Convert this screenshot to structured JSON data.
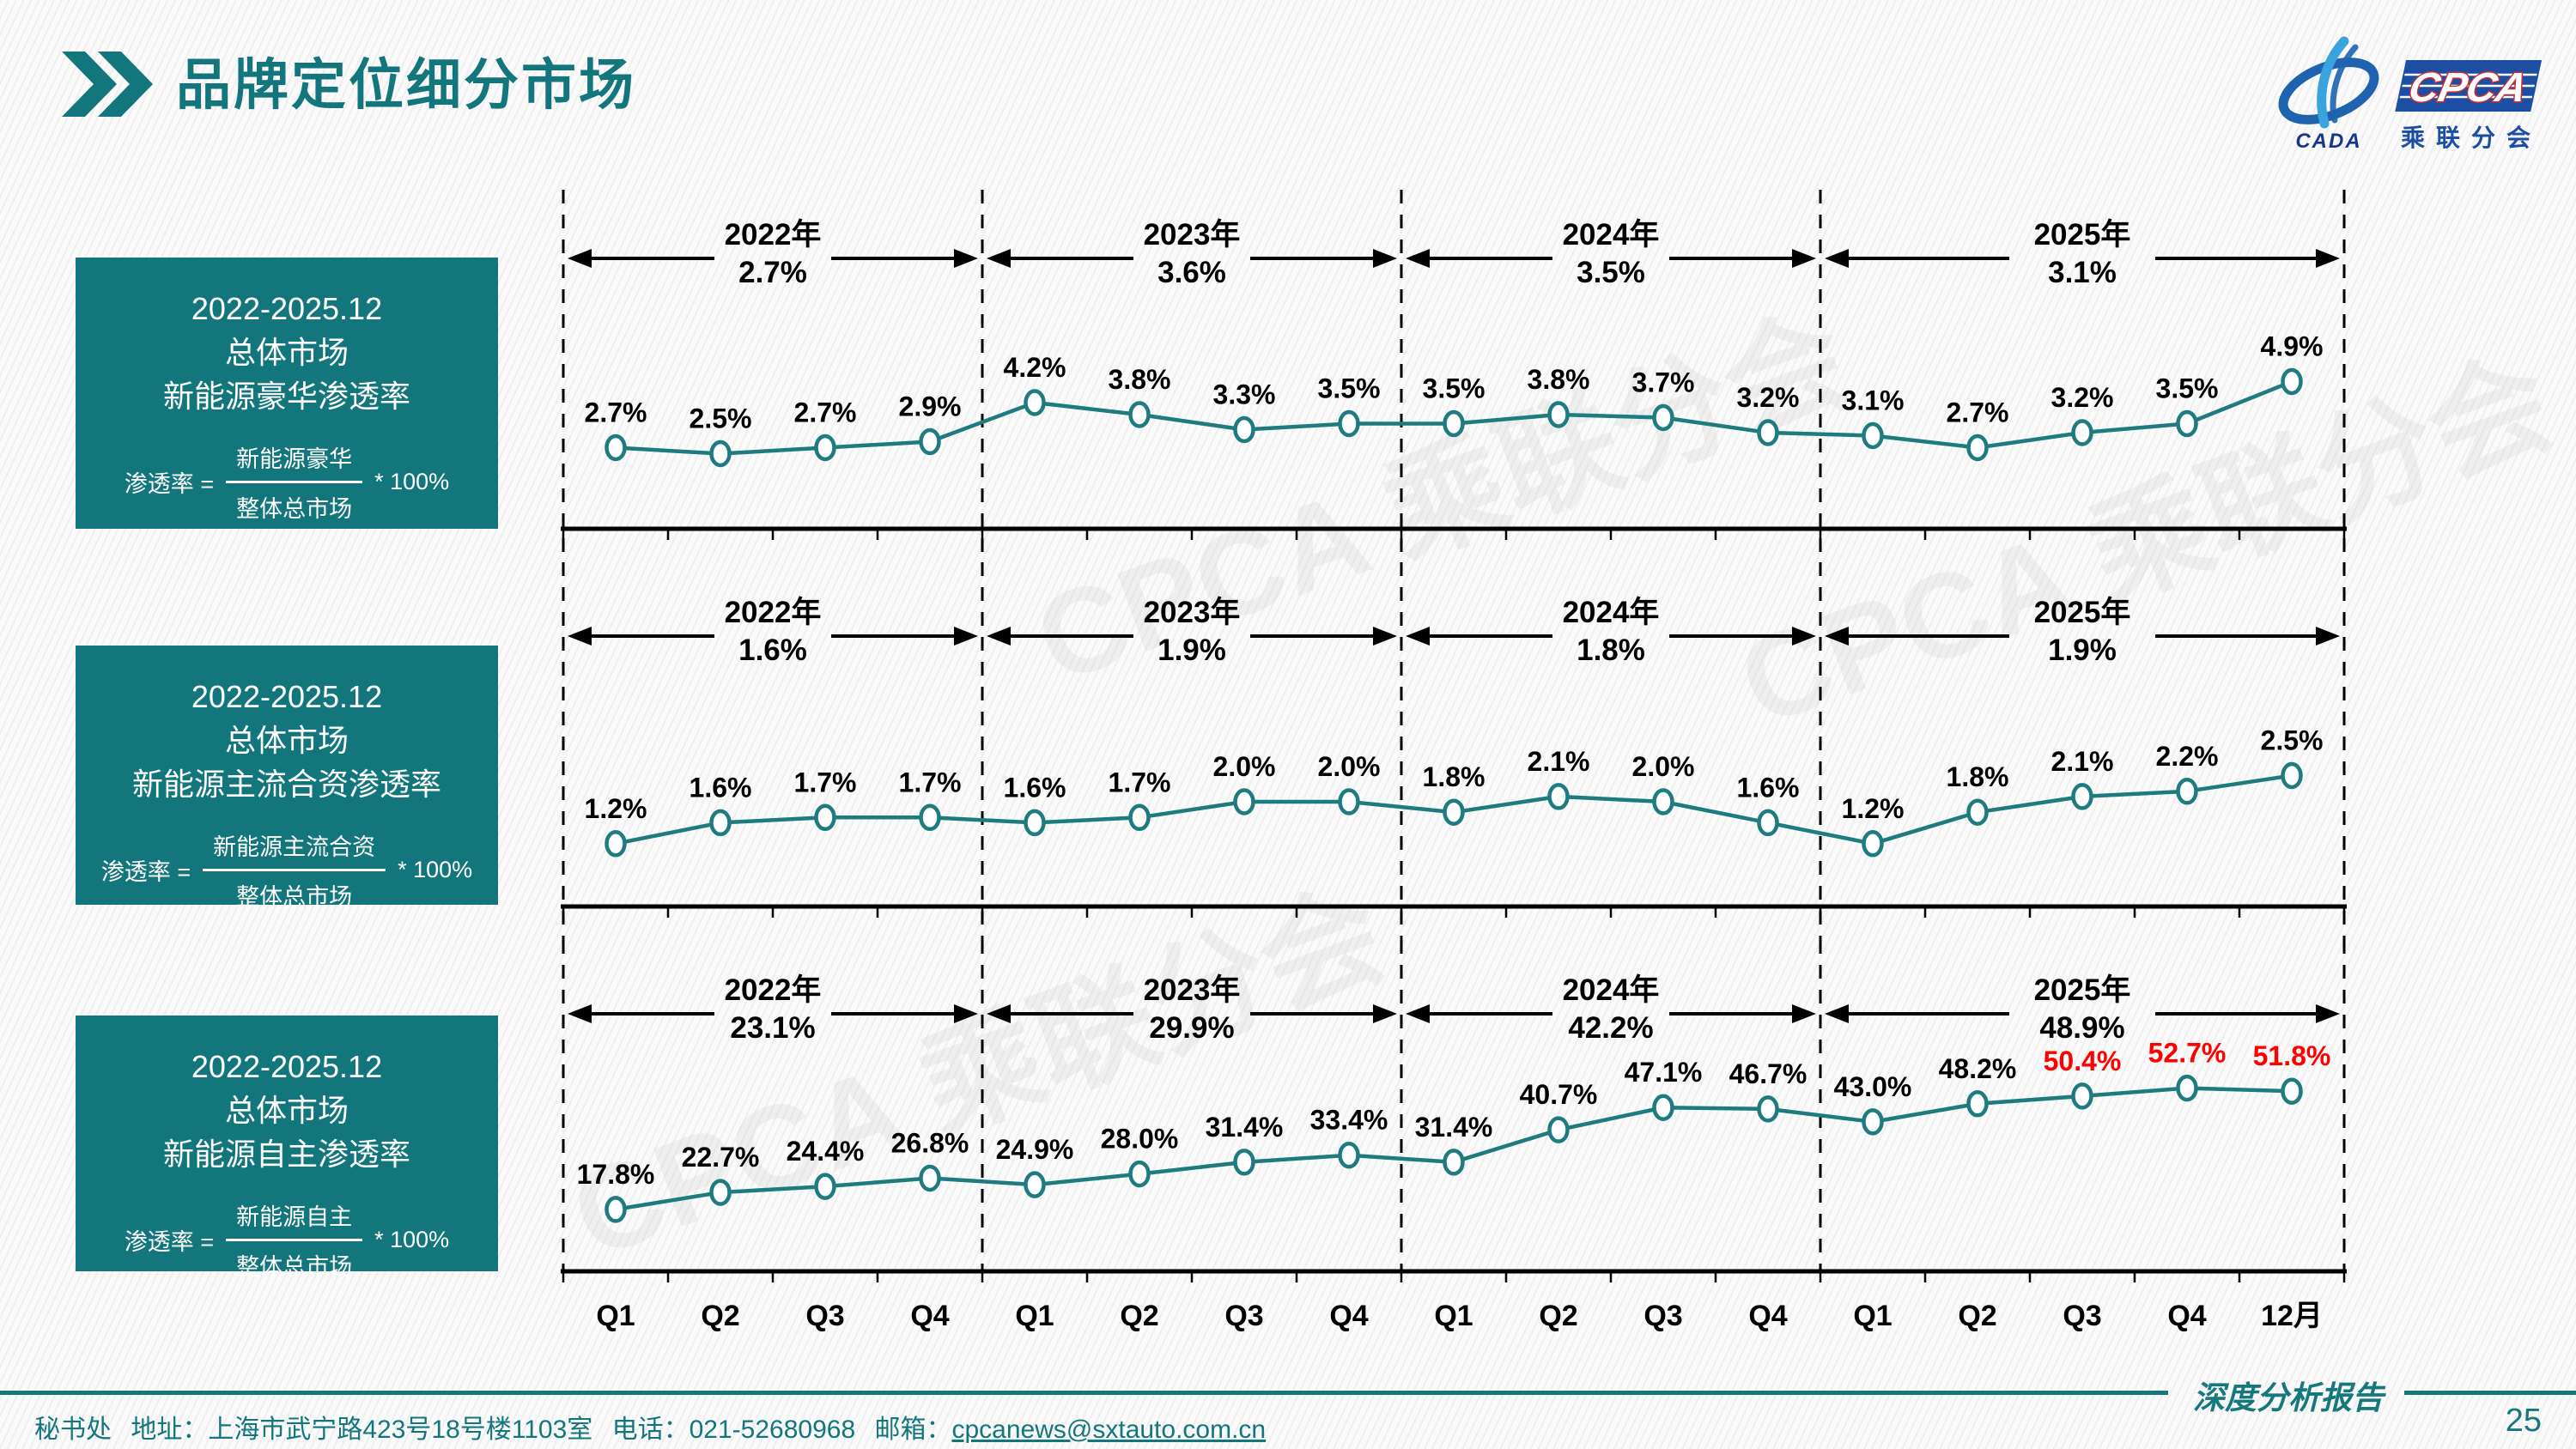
{
  "page": {
    "title": "品牌定位细分市场",
    "report_type": "深度分析报告",
    "page_number": "25"
  },
  "logo": {
    "cpca": "CPCA",
    "subtitle": "乘联分会",
    "cada": "CADA"
  },
  "watermark": "CPCA 乘联分会",
  "footer": {
    "dept": "秘书处",
    "address": "地址：上海市武宁路423号18号楼1103室",
    "phone": "电话：021-52680968",
    "email_label": "邮箱：",
    "email": "cpcanews@sxtauto.com.cn"
  },
  "colors": {
    "teal": "#12767C",
    "line": "#1E7B80",
    "red": "#FF0000",
    "black": "#000000",
    "logo_blue": "#1C4FA3"
  },
  "chart_data": [
    {
      "type": "line",
      "title": "2022-2025.12 总体市场 新能源豪华渗透率",
      "info": {
        "period": "2022-2025.12",
        "market": "总体市场",
        "metric": "新能源豪华渗透率",
        "lhs": "渗透率 =",
        "numerator": "新能源豪华",
        "denominator": "整体总市场",
        "times": "* 100%"
      },
      "years": [
        {
          "label": "2022年",
          "avg": "2.7%"
        },
        {
          "label": "2023年",
          "avg": "3.6%"
        },
        {
          "label": "2024年",
          "avg": "3.5%"
        },
        {
          "label": "2025年",
          "avg": "3.1%"
        }
      ],
      "x_labels": [
        "Q1",
        "Q2",
        "Q3",
        "Q4",
        "Q1",
        "Q2",
        "Q3",
        "Q4",
        "Q1",
        "Q2",
        "Q3",
        "Q4",
        "Q1",
        "Q2",
        "Q3",
        "Q4",
        "12月"
      ],
      "values": [
        2.7,
        2.5,
        2.7,
        2.9,
        4.2,
        3.8,
        3.3,
        3.5,
        3.5,
        3.8,
        3.7,
        3.2,
        3.1,
        2.7,
        3.2,
        3.5,
        4.9
      ],
      "labels": [
        "2.7%",
        "2.5%",
        "2.7%",
        "2.9%",
        "4.2%",
        "3.8%",
        "3.3%",
        "3.5%",
        "3.5%",
        "3.8%",
        "3.7%",
        "3.2%",
        "3.1%",
        "2.7%",
        "3.2%",
        "3.5%",
        "4.9%"
      ],
      "red_label_indices": [],
      "ylim": [
        0,
        11.5
      ],
      "grid": false,
      "legend": "none"
    },
    {
      "type": "line",
      "title": "2022-2025.12 总体市场 新能源主流合资渗透率",
      "info": {
        "period": "2022-2025.12",
        "market": "总体市场",
        "metric": "新能源主流合资渗透率",
        "lhs": "渗透率 =",
        "numerator": "新能源主流合资",
        "denominator": "整体总市场",
        "times": "* 100%"
      },
      "years": [
        {
          "label": "2022年",
          "avg": "1.6%"
        },
        {
          "label": "2023年",
          "avg": "1.9%"
        },
        {
          "label": "2024年",
          "avg": "1.8%"
        },
        {
          "label": "2025年",
          "avg": "1.9%"
        }
      ],
      "x_labels": [
        "Q1",
        "Q2",
        "Q3",
        "Q4",
        "Q1",
        "Q2",
        "Q3",
        "Q4",
        "Q1",
        "Q2",
        "Q3",
        "Q4",
        "Q1",
        "Q2",
        "Q3",
        "Q4",
        "12月"
      ],
      "values": [
        1.2,
        1.6,
        1.7,
        1.7,
        1.6,
        1.7,
        2.0,
        2.0,
        1.8,
        2.1,
        2.0,
        1.6,
        1.2,
        1.8,
        2.1,
        2.2,
        2.5
      ],
      "labels": [
        "1.2%",
        "1.6%",
        "1.7%",
        "1.7%",
        "1.6%",
        "1.7%",
        "2.0%",
        "2.0%",
        "1.8%",
        "2.1%",
        "2.0%",
        "1.6%",
        "1.2%",
        "1.8%",
        "2.1%",
        "2.2%",
        "2.5%"
      ],
      "red_label_indices": [],
      "ylim": [
        0,
        6.6
      ],
      "grid": false,
      "legend": "none"
    },
    {
      "type": "line",
      "title": "2022-2025.12 总体市场 新能源自主渗透率",
      "info": {
        "period": "2022-2025.12",
        "market": "总体市场",
        "metric": "新能源自主渗透率",
        "lhs": "渗透率 =",
        "numerator": "新能源自主",
        "denominator": "整体总市场",
        "times": "* 100%"
      },
      "years": [
        {
          "label": "2022年",
          "avg": "23.1%"
        },
        {
          "label": "2023年",
          "avg": "29.9%"
        },
        {
          "label": "2024年",
          "avg": "42.2%"
        },
        {
          "label": "2025年",
          "avg": "48.9%"
        }
      ],
      "x_labels": [
        "Q1",
        "Q2",
        "Q3",
        "Q4",
        "Q1",
        "Q2",
        "Q3",
        "Q4",
        "Q1",
        "Q2",
        "Q3",
        "Q4",
        "Q1",
        "Q2",
        "Q3",
        "Q4",
        "12月"
      ],
      "values": [
        17.8,
        22.7,
        24.4,
        26.8,
        24.9,
        28.0,
        31.4,
        33.4,
        31.4,
        40.7,
        47.1,
        46.7,
        43.0,
        48.2,
        50.4,
        52.7,
        51.8
      ],
      "labels": [
        "17.8%",
        "22.7%",
        "24.4%",
        "26.8%",
        "24.9%",
        "28.0%",
        "31.4%",
        "33.4%",
        "31.4%",
        "40.7%",
        "47.1%",
        "46.7%",
        "43.0%",
        "48.2%",
        "50.4%",
        "52.7%",
        "51.8%"
      ],
      "red_label_indices": [
        14,
        15,
        16
      ],
      "ylim": [
        0,
        95
      ],
      "grid": false,
      "legend": "none"
    }
  ]
}
